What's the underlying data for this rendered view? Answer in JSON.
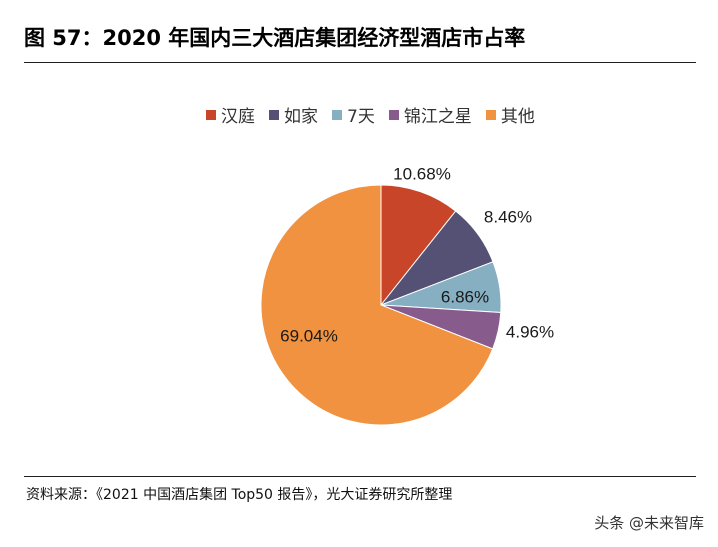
{
  "figure": {
    "title": "图 57：2020 年国内三大酒店集团经济型酒店市占率",
    "source": "资料来源：《2021 中国酒店集团 Top50 报告》，光大证券研究所整理",
    "watermark": "头条 @未来智库"
  },
  "chart_data": {
    "type": "pie",
    "title": "",
    "categories": [
      "汉庭",
      "如家",
      "7天",
      "锦江之星",
      "其他"
    ],
    "values": [
      10.68,
      8.46,
      6.86,
      4.96,
      69.04
    ],
    "labels": [
      "10.68%",
      "8.46%",
      "6.86%",
      "4.96%",
      "69.04%"
    ],
    "unit": "%",
    "colors": [
      "#C8452A",
      "#545175",
      "#86AFC2",
      "#875C8C",
      "#F0923F"
    ],
    "start_angle_deg": 0,
    "direction": "clockwise",
    "legend": {
      "placement": "top"
    }
  }
}
